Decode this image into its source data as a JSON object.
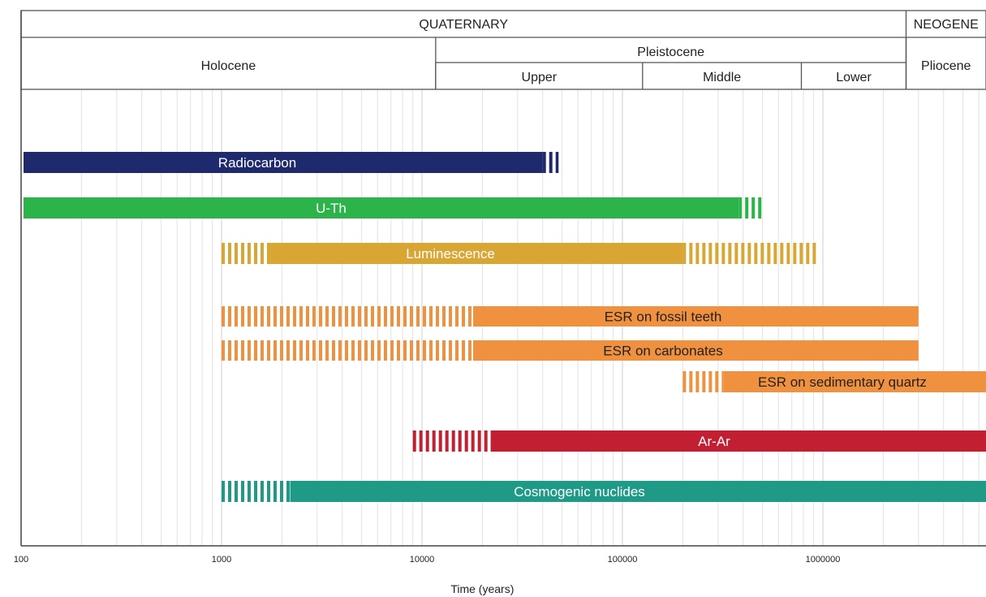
{
  "chart_data": {
    "type": "bar",
    "orientation": "horizontal",
    "x_scale": "log",
    "xlim": [
      100,
      7000000
    ],
    "xlabel": "Time (years)",
    "x_ticks": [
      "100",
      "1000",
      "10000",
      "100000",
      "1000000"
    ],
    "x_tick_values": [
      100,
      1000,
      10000,
      100000,
      1000000
    ],
    "grid": true,
    "header": {
      "periods": [
        {
          "label": "QUATERNARY",
          "from": 100,
          "to": 2600000
        },
        {
          "label": "NEOGENE",
          "from": 2600000,
          "to": 7000000
        }
      ],
      "epochs": [
        {
          "label": "Holocene",
          "from": 100,
          "to": 11700
        },
        {
          "label": "Pleistocene",
          "from": 11700,
          "to": 2600000
        },
        {
          "label": "Pliocene",
          "from": 2600000,
          "to": 7000000
        }
      ],
      "stages": [
        {
          "label": "Upper",
          "from": 11700,
          "to": 126000
        },
        {
          "label": "Middle",
          "from": 126000,
          "to": 781000
        },
        {
          "label": "Lower",
          "from": 781000,
          "to": 2600000
        }
      ]
    },
    "series": [
      {
        "name": "Radiocarbon",
        "color": "#1f2a6e",
        "dashed_start": null,
        "solid": [
          100,
          40000
        ],
        "dashed_end": [
          40000,
          48000
        ],
        "label_color": "#ffffff"
      },
      {
        "name": "U-Th",
        "color": "#2cb34a",
        "dashed_start": null,
        "solid": [
          100,
          380000
        ],
        "dashed_end": [
          380000,
          500000
        ],
        "label_color": "#ffffff"
      },
      {
        "name": "Luminescence",
        "color": "#d9a633",
        "dashed_start": [
          1000,
          1750
        ],
        "solid": [
          1750,
          200000
        ],
        "dashed_end": [
          200000,
          950000
        ],
        "label_color": "#ffffff"
      },
      {
        "name": "ESR on fossil teeth",
        "color": "#f0913f",
        "dashed_start": [
          1000,
          18000
        ],
        "solid": [
          18000,
          3000000
        ],
        "dashed_end": null,
        "label_color": "#222222"
      },
      {
        "name": "ESR on carbonates",
        "color": "#f0913f",
        "dashed_start": [
          1000,
          18000
        ],
        "solid": [
          18000,
          3000000
        ],
        "dashed_end": null,
        "label_color": "#222222"
      },
      {
        "name": "ESR on sedimentary quartz",
        "color": "#f0913f",
        "dashed_start": [
          200000,
          320000
        ],
        "solid": [
          320000,
          7000000
        ],
        "dashed_end": null,
        "label_color": "#222222"
      },
      {
        "name": "Ar-Ar",
        "color": "#c21f32",
        "dashed_start": [
          9000,
          22000
        ],
        "solid": [
          22000,
          7000000
        ],
        "dashed_end": null,
        "label_color": "#ffffff"
      },
      {
        "name": "Cosmogenic nuclides",
        "color": "#1e9a86",
        "dashed_start": [
          1000,
          2200
        ],
        "solid": [
          2200,
          7000000
        ],
        "dashed_end": null,
        "label_color": "#ffffff"
      }
    ]
  }
}
